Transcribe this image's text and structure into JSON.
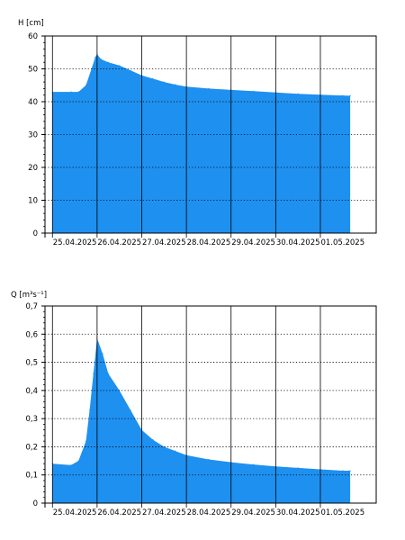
{
  "colors": {
    "fill": "#1E90F0",
    "grid": "#000000",
    "axis": "#000000",
    "background": "#ffffff"
  },
  "chart_data": [
    {
      "type": "area",
      "ylabel": "H [cm]",
      "ylim": [
        0,
        60
      ],
      "y_ticks": [
        0,
        10,
        20,
        30,
        40,
        50,
        60
      ],
      "y_tick_labels": [
        "0",
        "10",
        "20",
        "30",
        "40",
        "50",
        "60"
      ],
      "x_range": [
        "2025-04-24T20:00",
        "2025-05-02T06:00"
      ],
      "x_ticks": [
        "2025-04-25T00:00",
        "2025-04-26T00:00",
        "2025-04-27T00:00",
        "2025-04-28T00:00",
        "2025-04-29T00:00",
        "2025-04-30T00:00",
        "2025-05-01T00:00"
      ],
      "x_tick_labels": [
        "25.04.2025",
        "26.04.2025",
        "27.04.2025",
        "28.04.2025",
        "29.04.2025",
        "30.04.2025",
        "01.05.2025"
      ],
      "x_label_mode": "centered-between-ticks",
      "grid": true,
      "series": [
        {
          "x": [
            "2025-04-25T00:00",
            "2025-04-25T10:00",
            "2025-04-25T14:00",
            "2025-04-25T18:00",
            "2025-04-25T21:00",
            "2025-04-25T23:00",
            "2025-04-26T00:00",
            "2025-04-26T02:00",
            "2025-04-26T06:00",
            "2025-04-26T12:00",
            "2025-04-26T18:00",
            "2025-04-27T00:00",
            "2025-04-27T06:00",
            "2025-04-27T12:00",
            "2025-04-27T18:00",
            "2025-04-28T00:00",
            "2025-04-28T12:00",
            "2025-04-29T00:00",
            "2025-04-29T12:00",
            "2025-04-30T00:00",
            "2025-04-30T12:00",
            "2025-05-01T00:00",
            "2025-05-01T12:00",
            "2025-05-01T16:00"
          ],
          "y": [
            43,
            43,
            43,
            45,
            50,
            53.5,
            54.5,
            53,
            52,
            51,
            49.5,
            48,
            47,
            46,
            45.2,
            44.6,
            44,
            43.6,
            43.2,
            42.8,
            42.4,
            42.1,
            41.9,
            41.8
          ]
        }
      ]
    },
    {
      "type": "area",
      "ylabel": "Q [m³s⁻¹]",
      "ylim": [
        0,
        0.7
      ],
      "y_ticks": [
        0,
        0.1,
        0.2,
        0.3,
        0.4,
        0.5,
        0.6,
        0.7
      ],
      "y_tick_labels": [
        "0",
        "0,1",
        "0,2",
        "0,3",
        "0,4",
        "0,5",
        "0,6",
        "0,7"
      ],
      "x_range": [
        "2025-04-24T20:00",
        "2025-05-02T06:00"
      ],
      "x_ticks": [
        "2025-04-25T00:00",
        "2025-04-26T00:00",
        "2025-04-27T00:00",
        "2025-04-28T00:00",
        "2025-04-29T00:00",
        "2025-04-30T00:00",
        "2025-05-01T00:00"
      ],
      "x_tick_labels": [
        "25.04.2025",
        "26.04.2025",
        "27.04.2025",
        "28.04.2025",
        "29.04.2025",
        "30.04.2025",
        "01.05.2025"
      ],
      "x_label_mode": "centered-between-ticks",
      "grid": true,
      "series": [
        {
          "x": [
            "2025-04-25T00:00",
            "2025-04-25T10:00",
            "2025-04-25T14:00",
            "2025-04-25T18:00",
            "2025-04-25T20:00",
            "2025-04-25T22:00",
            "2025-04-26T00:00",
            "2025-04-26T03:00",
            "2025-04-26T06:00",
            "2025-04-26T12:00",
            "2025-04-26T18:00",
            "2025-04-27T00:00",
            "2025-04-27T06:00",
            "2025-04-27T12:00",
            "2025-04-27T18:00",
            "2025-04-28T00:00",
            "2025-04-28T12:00",
            "2025-04-29T00:00",
            "2025-04-29T12:00",
            "2025-04-30T00:00",
            "2025-04-30T12:00",
            "2025-05-01T00:00",
            "2025-05-01T12:00",
            "2025-05-01T16:00"
          ],
          "y": [
            0.14,
            0.135,
            0.15,
            0.22,
            0.33,
            0.46,
            0.585,
            0.53,
            0.46,
            0.4,
            0.33,
            0.26,
            0.225,
            0.2,
            0.185,
            0.17,
            0.155,
            0.145,
            0.137,
            0.13,
            0.125,
            0.12,
            0.115,
            0.115
          ]
        }
      ]
    }
  ]
}
